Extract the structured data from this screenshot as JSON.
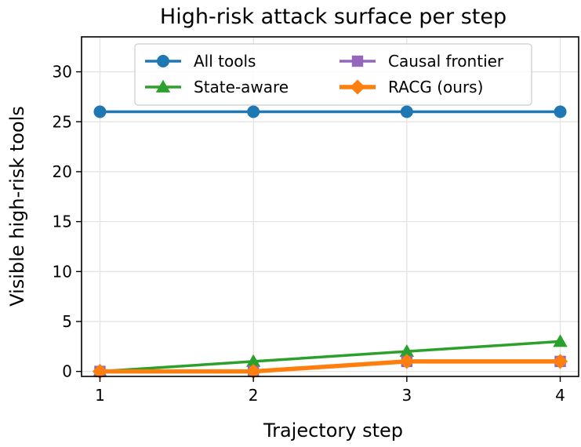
{
  "chart_data": {
    "type": "line",
    "title": "High-risk attack surface per step",
    "xlabel": "Trajectory step",
    "ylabel": "Visible high-risk tools",
    "x": [
      1,
      2,
      3,
      4
    ],
    "xlim": [
      0.88,
      4.12
    ],
    "ylim": [
      -0.5,
      33.5
    ],
    "xticks": [
      1,
      2,
      3,
      4
    ],
    "yticks": [
      0,
      5,
      10,
      15,
      20,
      25,
      30
    ],
    "grid": true,
    "legend_position": "upper center",
    "series": [
      {
        "name": "All tools",
        "values": [
          26,
          26,
          26,
          26
        ],
        "color": "#1f77b4",
        "marker": "circle"
      },
      {
        "name": "State-aware",
        "values": [
          0,
          1,
          2,
          3
        ],
        "color": "#2ca02c",
        "marker": "triangle"
      },
      {
        "name": "Causal frontier",
        "values": [
          0,
          0,
          1,
          1
        ],
        "color": "#9467bd",
        "marker": "square"
      },
      {
        "name": "RACG (ours)",
        "values": [
          0,
          0,
          1,
          1
        ],
        "color": "#ff7f0e",
        "marker": "diamond"
      }
    ]
  }
}
